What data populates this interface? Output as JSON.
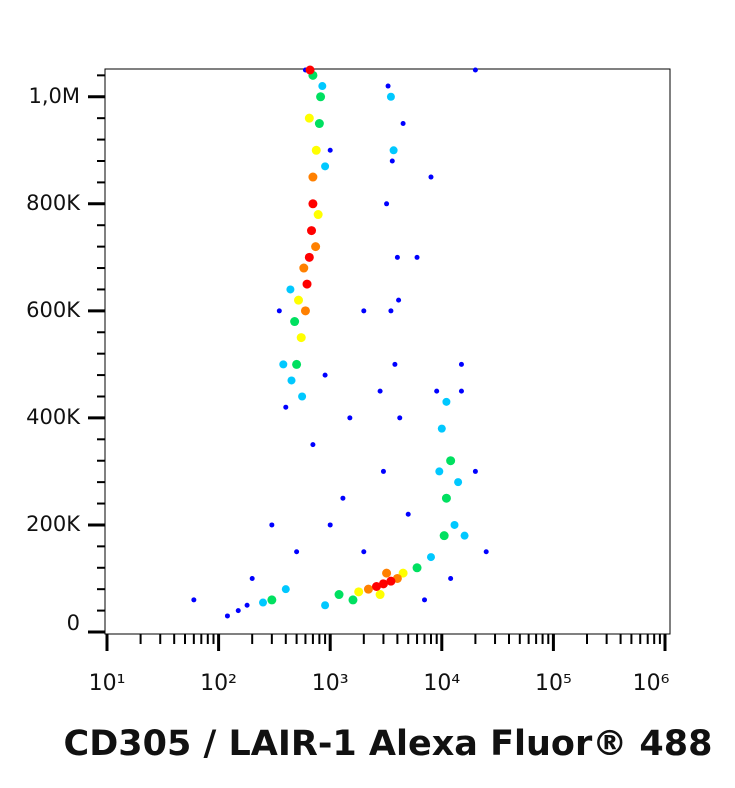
{
  "chart_data": {
    "type": "scatter",
    "x_label": "CD305 / LAIR-1 Alexa Fluor® 488",
    "xscale": "log",
    "xlim": [
      10,
      1000000
    ],
    "ylim": [
      0,
      1050000
    ],
    "xticks": [
      {
        "value": 10,
        "label": "10¹"
      },
      {
        "value": 100,
        "label": "10²"
      },
      {
        "value": 1000,
        "label": "10³"
      },
      {
        "value": 10000,
        "label": "10⁴"
      },
      {
        "value": 100000,
        "label": "10⁵"
      },
      {
        "value": 1000000,
        "label": "10⁶"
      }
    ],
    "xminorticks": [
      20,
      30,
      40,
      50,
      60,
      70,
      80,
      90,
      200,
      300,
      400,
      500,
      600,
      700,
      800,
      900,
      2000,
      3000,
      4000,
      5000,
      6000,
      7000,
      8000,
      9000,
      20000,
      30000,
      40000,
      50000,
      60000,
      70000,
      80000,
      90000,
      200000,
      300000,
      400000,
      500000,
      600000,
      700000,
      800000,
      900000
    ],
    "yticks": [
      0,
      {
        "value": 200000,
        "label": "200K"
      },
      {
        "value": 400000,
        "label": "400K"
      },
      {
        "value": 600000,
        "label": "600K"
      },
      {
        "value": 800000,
        "label": "800K"
      },
      {
        "value": 1000000,
        "label": "1,0M"
      }
    ],
    "yminorticks": [
      40000,
      80000,
      120000,
      160000,
      240000,
      280000,
      320000,
      360000,
      440000,
      480000,
      520000,
      560000,
      640000,
      680000,
      720000,
      760000,
      840000,
      880000,
      920000,
      960000,
      1040000
    ],
    "series": [
      {
        "color": "#0000ff",
        "size": 2.5,
        "x": [
          3200,
          4000,
          3500,
          3800,
          4200,
          3000,
          4500,
          400,
          1000,
          350,
          1500,
          2000,
          6000,
          8000,
          15000,
          20000,
          25000,
          150,
          120,
          200,
          500,
          1000,
          15000,
          9000,
          12000,
          20000,
          600,
          180,
          7000,
          2000,
          3300,
          3600,
          4100,
          2800,
          1300,
          5000,
          700,
          900,
          60,
          300
        ],
        "y": [
          800000,
          700000,
          600000,
          500000,
          400000,
          300000,
          950000,
          420000,
          900000,
          600000,
          400000,
          600000,
          700000,
          850000,
          500000,
          300000,
          150000,
          40000,
          30000,
          100000,
          150000,
          200000,
          450000,
          450000,
          100000,
          1050000,
          1050000,
          50000,
          60000,
          150000,
          1020000,
          880000,
          620000,
          450000,
          250000,
          220000,
          350000,
          480000,
          60000,
          200000
        ]
      },
      {
        "color": "#00c8ff",
        "size": 4,
        "x": [
          450,
          850,
          440,
          900,
          380,
          250,
          400,
          8000,
          900,
          10000,
          13000,
          9500,
          14000,
          3500,
          3700,
          11000,
          16000,
          560
        ],
        "y": [
          470000,
          1020000,
          640000,
          870000,
          500000,
          55000,
          80000,
          140000,
          50000,
          380000,
          200000,
          300000,
          280000,
          1000000,
          900000,
          430000,
          180000,
          440000
        ]
      },
      {
        "color": "#00e060",
        "size": 4.5,
        "x": [
          500,
          800,
          480,
          820,
          1200,
          6000,
          300,
          11000,
          12000,
          10500,
          700,
          1600
        ],
        "y": [
          500000,
          950000,
          580000,
          1000000,
          70000,
          120000,
          60000,
          250000,
          320000,
          180000,
          1040000,
          60000
        ]
      },
      {
        "color": "#ffff00",
        "size": 4.5,
        "x": [
          550,
          750,
          520,
          780,
          1800,
          4500,
          2800,
          650
        ],
        "y": [
          550000,
          900000,
          620000,
          780000,
          75000,
          110000,
          70000,
          960000
        ]
      },
      {
        "color": "#ff8000",
        "size": 4.5,
        "x": [
          600,
          700,
          580,
          740,
          2200,
          4000,
          3200
        ],
        "y": [
          600000,
          850000,
          680000,
          720000,
          80000,
          100000,
          110000
        ]
      },
      {
        "color": "#ff0000",
        "size": 4.5,
        "x": [
          650,
          680,
          620,
          700,
          3000,
          3500,
          2600,
          660
        ],
        "y": [
          700000,
          750000,
          650000,
          800000,
          90000,
          95000,
          85000,
          1050000
        ]
      }
    ]
  }
}
